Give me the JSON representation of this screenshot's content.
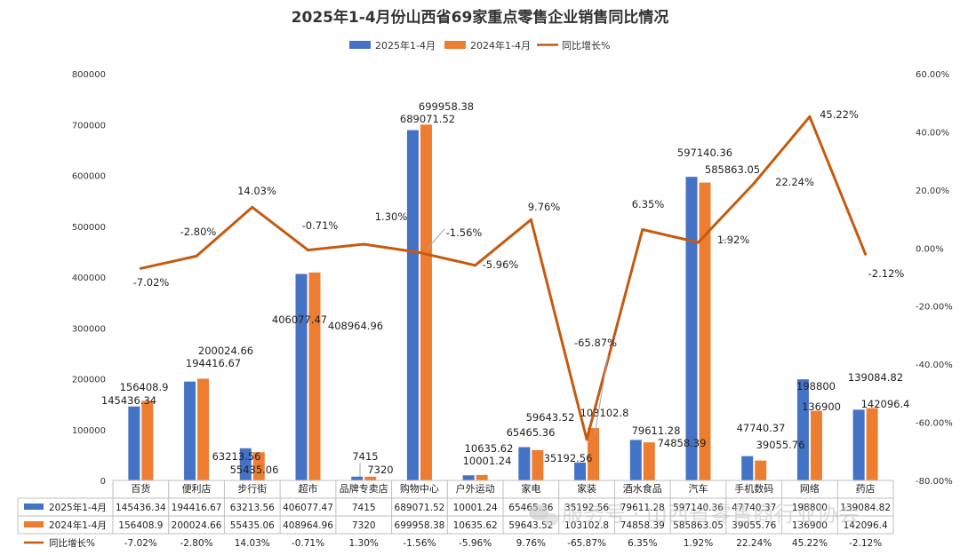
{
  "chart_data": {
    "type": "bar+line",
    "title": "2025年1-4月份山西省69家重点零售企业销售同比情况",
    "categories": [
      "百货",
      "便利店",
      "步行街",
      "超市",
      "品牌专卖店",
      "购物中心",
      "户外运动",
      "家电",
      "家装",
      "酒水食品",
      "汽车",
      "手机数码",
      "网络",
      "药店"
    ],
    "series": [
      {
        "name": "2025年1-4月",
        "type": "bar",
        "axis": "left",
        "color": "#4472C4",
        "values": [
          145436.34,
          194416.67,
          63213.56,
          406077.47,
          7415,
          689071.52,
          10001.24,
          65465.36,
          35192.56,
          79611.28,
          597140.36,
          47740.37,
          198800,
          139084.82
        ],
        "labels": [
          "145436.34",
          "194416.67",
          "63213.56",
          "406077.47",
          "7415",
          "689071.52",
          "10001.24",
          "65465.36",
          "35192.56",
          "79611.28",
          "597140.36",
          "47740.37",
          "198800",
          "139084.82"
        ]
      },
      {
        "name": "2024年1-4月",
        "type": "bar",
        "axis": "left",
        "color": "#ED7D31",
        "values": [
          156408.9,
          200024.66,
          55435.06,
          408964.96,
          7320,
          699958.38,
          10635.62,
          59643.52,
          103102.8,
          74858.39,
          585863.05,
          39055.76,
          136900,
          142096.4
        ],
        "labels": [
          "156408.9",
          "200024.66",
          "55435.06",
          "408964.96",
          "7320",
          "699958.38",
          "10635.62",
          "59643.52",
          "103102.8",
          "74858.39",
          "585863.05",
          "39055.76",
          "136900",
          "142096.4"
        ]
      },
      {
        "name": "同比增长%",
        "type": "line",
        "axis": "right",
        "color": "#C55A11",
        "values": [
          -7.02,
          -2.8,
          14.03,
          -0.71,
          1.3,
          -1.56,
          -5.96,
          9.76,
          -65.87,
          6.35,
          1.92,
          22.24,
          45.22,
          -2.12
        ],
        "labels": [
          "-7.02%",
          "-2.80%",
          "14.03%",
          "-0.71%",
          "1.30%",
          "-1.56%",
          "-5.96%",
          "9.76%",
          "-65.87%",
          "6.35%",
          "1.92%",
          "22.24%",
          "45.22%",
          "-2.12%"
        ]
      }
    ],
    "y_left": {
      "min": 0,
      "max": 800000,
      "step": 100000,
      "ticks": [
        "0",
        "100000",
        "200000",
        "300000",
        "400000",
        "500000",
        "600000",
        "700000",
        "800000"
      ]
    },
    "y_right": {
      "min": -80,
      "max": 60,
      "step": 20,
      "ticks": [
        "-80.00%",
        "-60.00%",
        "-40.00%",
        "-20.00%",
        "0.00%",
        "20.00%",
        "40.00%",
        "60.00%"
      ]
    },
    "legend_position": "top",
    "grid": false,
    "data_table": {
      "rows": [
        {
          "label": "2025年1-4月",
          "values": [
            "145436.34",
            "194416.67",
            "63213.56",
            "406077.47",
            "7415",
            "689071.52",
            "10001.24",
            "65465.36",
            "35192.56",
            "79611.28",
            "597140.36",
            "47740.37",
            "198800",
            "139084.82"
          ]
        },
        {
          "label": "2024年1-4月",
          "values": [
            "156408.9",
            "200024.66",
            "55435.06",
            "408964.96",
            "7320",
            "699958.38",
            "10635.62",
            "59643.52",
            "103102.8",
            "74858.39",
            "585863.05",
            "39055.76",
            "136900",
            "142096.4"
          ]
        },
        {
          "label": "同比增长%",
          "values": [
            "-7.02%",
            "-2.80%",
            "14.03%",
            "-0.71%",
            "1.30%",
            "-1.56%",
            "-5.96%",
            "9.76%",
            "-65.87%",
            "6.35%",
            "1.92%",
            "22.24%",
            "45.22%",
            "-2.12%"
          ]
        }
      ]
    }
  },
  "watermark": {
    "text": "服务号 · 山西省零售商行业协会",
    "icon": "wechat-icon"
  }
}
